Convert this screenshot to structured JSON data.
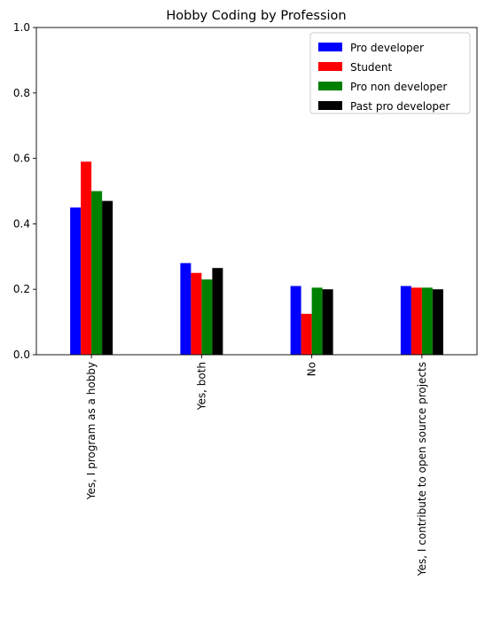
{
  "chart_data": {
    "type": "bar",
    "title": "Hobby Coding by Profession",
    "xlabel": "",
    "ylabel": "",
    "ylim": [
      0,
      1.0
    ],
    "yticks": [
      "0.0",
      "0.2",
      "0.4",
      "0.6",
      "0.8",
      "1.0"
    ],
    "categories": [
      "Yes, I program as a hobby",
      "Yes, both",
      "No",
      "Yes, I contribute to open source projects"
    ],
    "series": [
      {
        "name": "Pro developer",
        "color": "#0000ff",
        "values": [
          0.45,
          0.28,
          0.21,
          0.21
        ]
      },
      {
        "name": "Student",
        "color": "#ff0000",
        "values": [
          0.59,
          0.25,
          0.125,
          0.205
        ]
      },
      {
        "name": "Pro non developer",
        "color": "#008000",
        "values": [
          0.5,
          0.23,
          0.205,
          0.205
        ]
      },
      {
        "name": "Past pro developer",
        "color": "#000000",
        "values": [
          0.47,
          0.265,
          0.2,
          0.2
        ]
      }
    ],
    "legend": {
      "placement": "top-right"
    },
    "grid": false
  }
}
